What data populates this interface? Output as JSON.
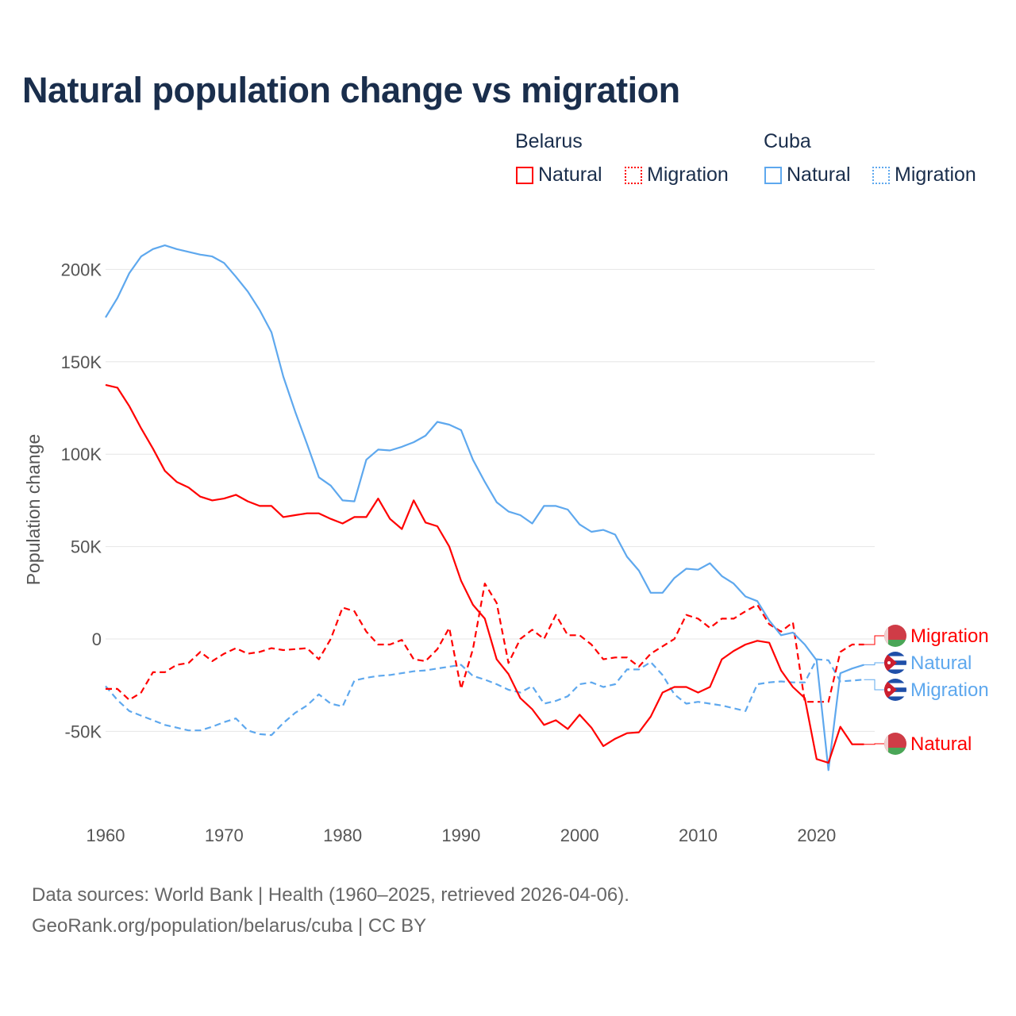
{
  "title": "Natural population change vs migration",
  "legend": {
    "groups": [
      {
        "name": "Belarus",
        "items": [
          {
            "label": "Natural",
            "style": "solid"
          },
          {
            "label": "Migration",
            "style": "dotted"
          }
        ],
        "color": "#ff0000"
      },
      {
        "name": "Cuba",
        "items": [
          {
            "label": "Natural",
            "style": "solid"
          },
          {
            "label": "Migration",
            "style": "dotted"
          }
        ],
        "color": "#5ea8ee"
      }
    ]
  },
  "footer": {
    "line1": "Data sources: World Bank | Health (1960–2025, retrieved 2026-04-06).",
    "line2": "GeoRank.org/population/belarus/cuba | CC BY"
  },
  "chart_data": {
    "type": "line",
    "title": "Natural population change vs migration",
    "xlabel": "",
    "ylabel": "Population change",
    "xlim": [
      1960,
      2025
    ],
    "ylim": [
      -75000,
      215000
    ],
    "x_ticks": [
      1960,
      1970,
      1980,
      1990,
      2000,
      2010,
      2020
    ],
    "x_tick_labels": [
      "1960",
      "1970",
      "1980",
      "1990",
      "2000",
      "2010",
      "2020"
    ],
    "y_ticks": [
      -50000,
      0,
      50000,
      100000,
      150000,
      200000
    ],
    "y_tick_labels": [
      "-50K",
      "0",
      "50K",
      "100K",
      "150K",
      "200K"
    ],
    "grid": true,
    "legend_position": "top-right",
    "x_start": 1960,
    "series": [
      {
        "name": "Belarus Natural",
        "end_label": "Natural",
        "color": "#ff0000",
        "dash": "solid",
        "values": [
          137.5,
          136,
          126,
          114,
          103,
          91,
          85,
          82,
          77,
          75,
          76,
          78,
          74.5,
          72,
          72,
          66,
          67,
          68,
          68,
          65,
          62.5,
          66,
          66,
          76,
          65,
          59.5,
          75,
          63,
          61,
          50,
          31.5,
          18.5,
          11,
          -11,
          -19,
          -32,
          -38,
          -46.5,
          -44,
          -48.7,
          -41,
          -48,
          -58,
          -54,
          -51,
          -50.5,
          -42,
          -29,
          -26,
          -26,
          -29,
          -26,
          -11,
          -6.5,
          -3,
          -1,
          -2,
          -17,
          -26,
          -32,
          -65,
          -67,
          -47.5,
          -57,
          -57
        ]
      },
      {
        "name": "Belarus Migration",
        "end_label": "Migration",
        "color": "#ff0000",
        "dash": "dashed",
        "values": [
          -27,
          -27,
          -33,
          -29,
          -18,
          -18,
          -14,
          -13,
          -7,
          -12,
          -8,
          -5,
          -8,
          -7,
          -5,
          -6,
          -5.5,
          -5,
          -11,
          0,
          17,
          15,
          4,
          -3,
          -3,
          -0.5,
          -11,
          -12,
          -5.5,
          6,
          -27,
          -5.5,
          30,
          19.5,
          -13,
          0,
          5,
          0,
          13,
          2,
          2,
          -3,
          -11,
          -10,
          -10,
          -15,
          -8,
          -4,
          0,
          13,
          11,
          6,
          11,
          11,
          15,
          18.5,
          8,
          4,
          9,
          -34,
          -34,
          -34,
          -7,
          -3,
          -3
        ]
      },
      {
        "name": "Cuba Natural",
        "end_label": "Natural",
        "color": "#5ea8ee",
        "dash": "solid",
        "values": [
          174,
          184.5,
          198,
          207,
          211,
          213,
          211,
          209.5,
          208,
          207,
          203.5,
          196,
          188,
          178,
          166,
          142,
          123,
          105.5,
          87.5,
          83,
          75,
          74.5,
          97,
          102.5,
          102,
          104,
          106.5,
          110,
          117.5,
          116,
          113,
          97,
          85,
          74,
          69,
          67,
          62.5,
          72,
          72,
          70,
          62,
          58,
          59,
          56.5,
          44.5,
          37,
          25,
          25,
          33,
          38,
          37.5,
          41,
          34,
          30,
          23,
          20.5,
          10,
          2,
          3.5,
          -3,
          -11.5,
          -71,
          -18.5,
          -16,
          -14
        ]
      },
      {
        "name": "Cuba Migration",
        "end_label": "Migration",
        "color": "#5ea8ee",
        "dash": "dashed",
        "values": [
          -25.5,
          -33,
          -39,
          -41.5,
          -44,
          -46.5,
          -48,
          -49.5,
          -49.5,
          -47.5,
          -45,
          -43,
          -49.5,
          -51.5,
          -52,
          -45.5,
          -40,
          -36,
          -30,
          -35,
          -36.5,
          -22.5,
          -21,
          -20,
          -19.5,
          -18.5,
          -17.5,
          -17,
          -16,
          -15,
          -14,
          -20,
          -22,
          -24.5,
          -27.5,
          -29,
          -25.5,
          -35,
          -33.5,
          -31,
          -24.5,
          -23.5,
          -26,
          -24.5,
          -16.5,
          -16.5,
          -12.5,
          -19.5,
          -30,
          -35,
          -34,
          -35,
          -36,
          -37.5,
          -39,
          -24.5,
          -23.5,
          -23,
          -23.5,
          -23.5,
          -11,
          -11.5,
          -23,
          -22.5,
          -22
        ]
      }
    ],
    "value_units": "thousands"
  }
}
